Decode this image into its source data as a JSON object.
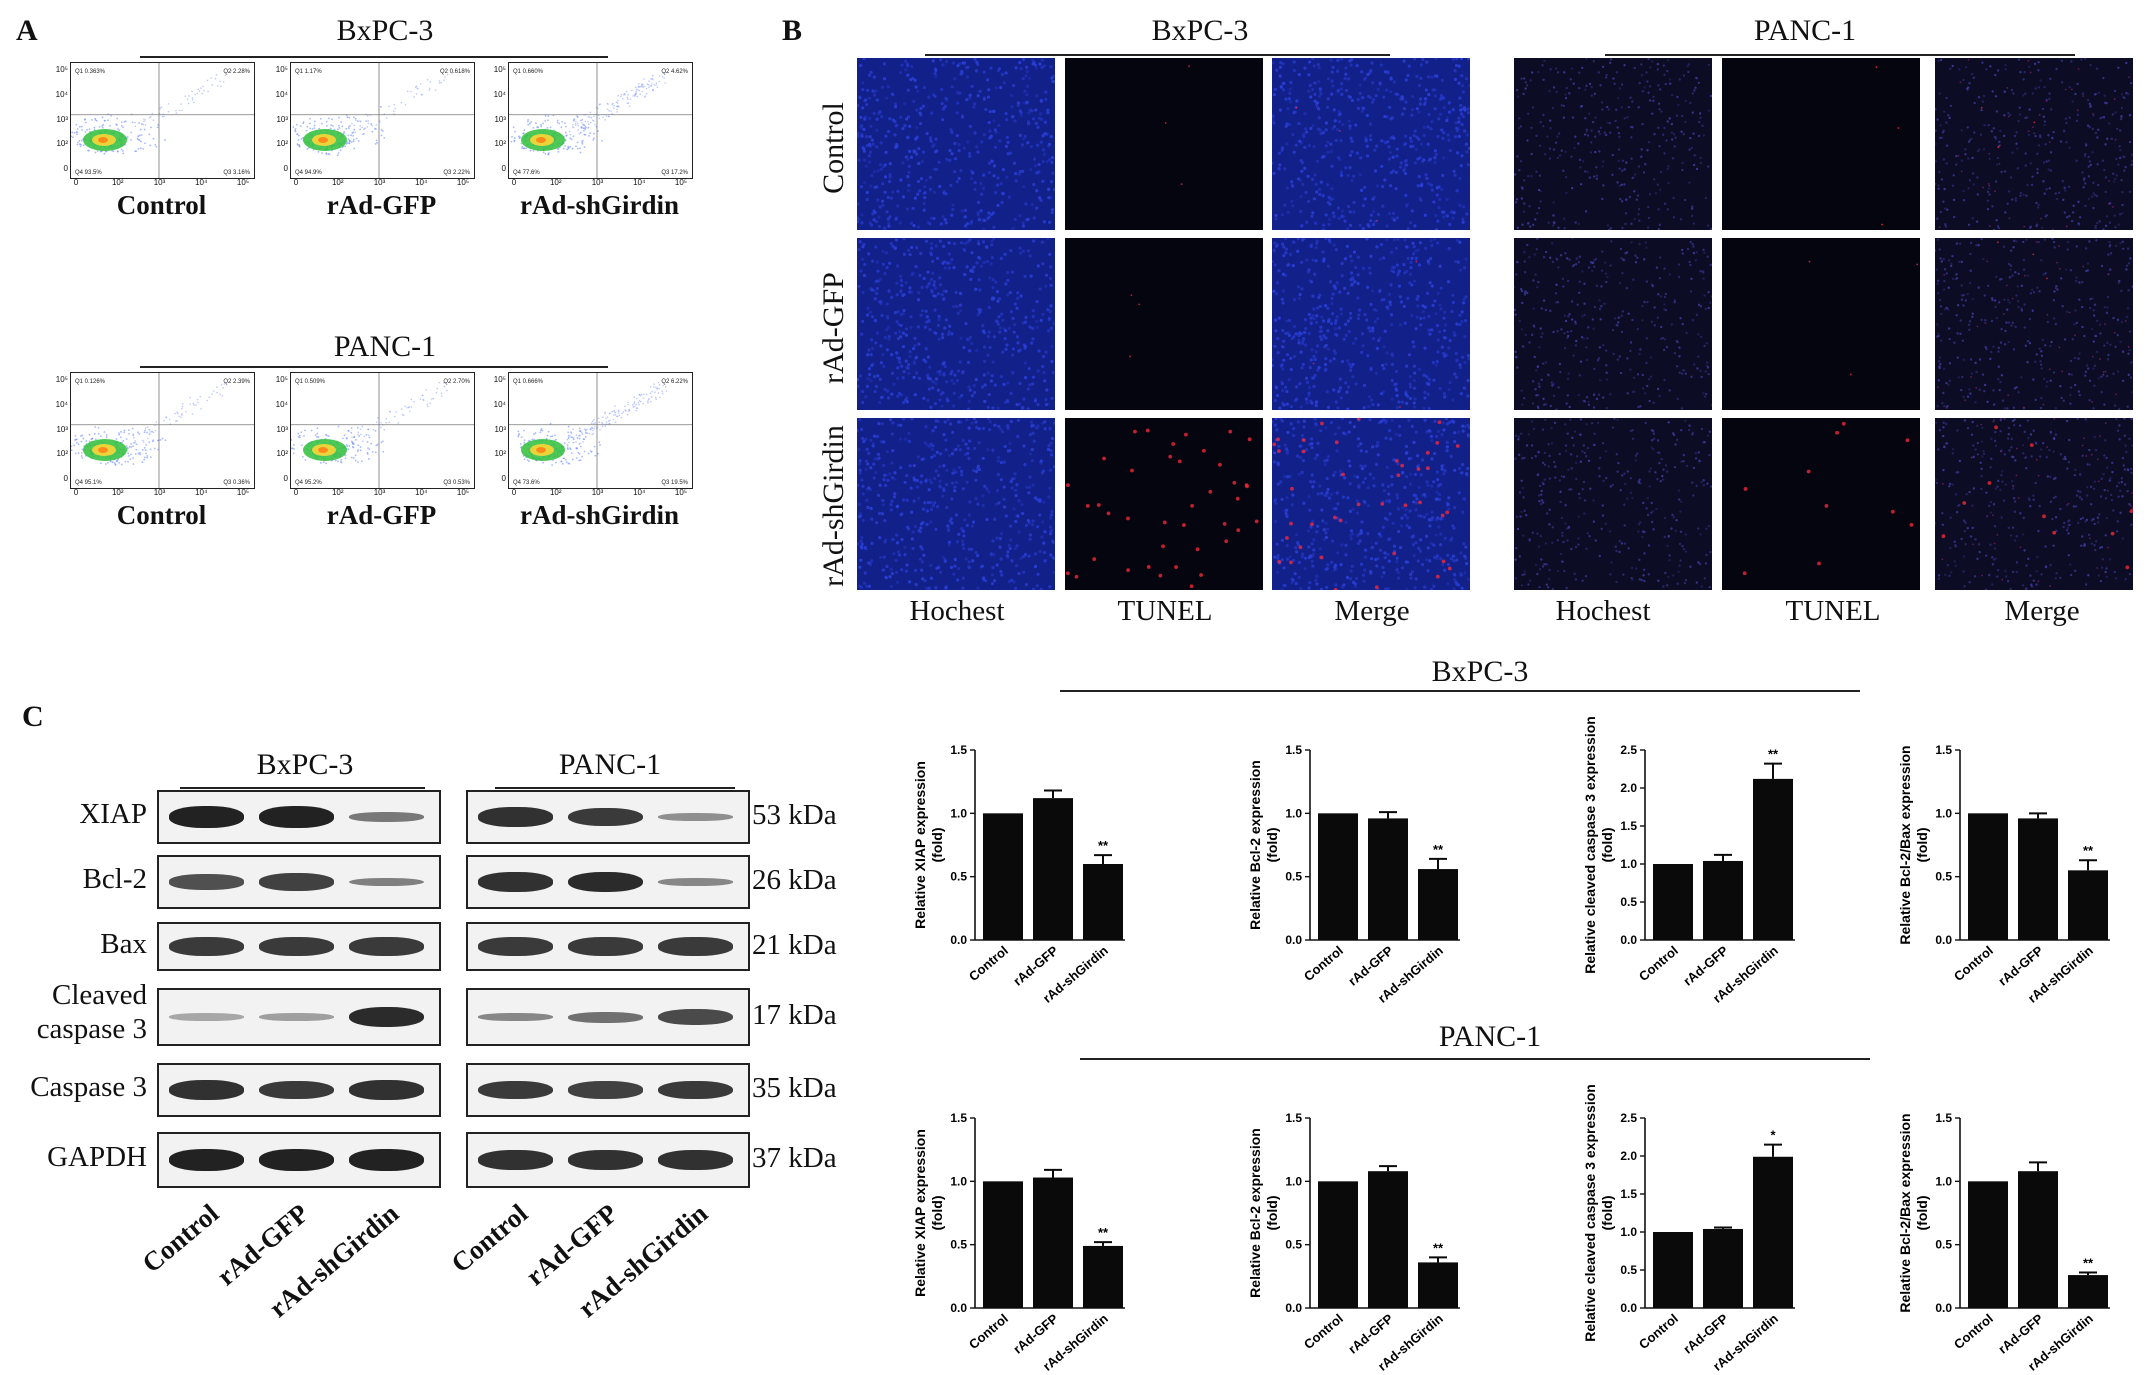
{
  "panel_a": {
    "letter": "A",
    "groups": [
      {
        "cell_line": "BxPC-3",
        "plots": [
          {
            "label": "Control",
            "q1": "0.363%",
            "q2": "2.28%",
            "q3": "3.16%",
            "q4": "93.5%"
          },
          {
            "label": "rAd-GFP",
            "q1": "1.17%",
            "q2": "0.618%",
            "q3": "2.22%",
            "q4": "94.9%"
          },
          {
            "label": "rAd-shGirdin",
            "q1": "0.660%",
            "q2": "4.62%",
            "q3": "17.2%",
            "q4": "77.6%"
          }
        ]
      },
      {
        "cell_line": "PANC-1",
        "plots": [
          {
            "label": "Control",
            "q1": "0.126%",
            "q2": "2.39%",
            "q3": "0.36%",
            "q4": "95.1%"
          },
          {
            "label": "rAd-GFP",
            "q1": "0.509%",
            "q2": "2.70%",
            "q3": "0.53%",
            "q4": "95.2%"
          },
          {
            "label": "rAd-shGirdin",
            "q1": "0.666%",
            "q2": "6.22%",
            "q3": "19.5%",
            "q4": "73.6%"
          }
        ]
      }
    ],
    "quadrant_names": [
      "Q1",
      "Q2",
      "Q3",
      "Q4"
    ],
    "ticks": [
      "0",
      "10²",
      "10³",
      "10⁴",
      "10⁵"
    ]
  },
  "panel_b": {
    "letter": "B",
    "cell_lines": [
      "BxPC-3",
      "PANC-1"
    ],
    "rows": [
      "Control",
      "rAd-GFP",
      "rAd-shGirdin"
    ],
    "columns": [
      "Hochest",
      "TUNEL",
      "Merge"
    ],
    "colors": {
      "hoechst_bright": "#2a3fd6",
      "hoechst_dim": "#14143a",
      "tunel": "#ff2a3a",
      "background": "#050510"
    }
  },
  "panel_c": {
    "letter": "C",
    "blot": {
      "cell_lines": [
        "BxPC-3",
        "PANC-1"
      ],
      "proteins": [
        {
          "name": "XIAP",
          "kda": "53 kDa"
        },
        {
          "name": "Bcl-2",
          "kda": "26 kDa"
        },
        {
          "name": "Bax",
          "kda": "21 kDa"
        },
        {
          "name": "Cleaved caspase 3",
          "kda": "17 kDa"
        },
        {
          "name": "Caspase 3",
          "kda": "35 kDa"
        },
        {
          "name": "GAPDH",
          "kda": "37 kDa"
        }
      ],
      "lanes": [
        "Control",
        "rAd-GFP",
        "rAd-shGirdin"
      ]
    },
    "chart_group_titles": [
      "BxPC-3",
      "PANC-1"
    ]
  },
  "chart_data": [
    {
      "type": "bar",
      "group": "BxPC-3",
      "categories": [
        "Control",
        "rAd-GFP",
        "rAd-shGirdin"
      ],
      "values": [
        1.0,
        1.12,
        0.6
      ],
      "errors": [
        0,
        0.06,
        0.07
      ],
      "sig": [
        "",
        "",
        "**"
      ],
      "ylabel": "Relative XIAP expression (fold)",
      "ylim": [
        0,
        1.5
      ],
      "yticks": [
        "0.0",
        "0.5",
        "1.0",
        "1.5"
      ]
    },
    {
      "type": "bar",
      "group": "BxPC-3",
      "categories": [
        "Control",
        "rAd-GFP",
        "rAd-shGirdin"
      ],
      "values": [
        1.0,
        0.96,
        0.56
      ],
      "errors": [
        0,
        0.05,
        0.08
      ],
      "sig": [
        "",
        "",
        "**"
      ],
      "ylabel": "Relative Bcl-2 expression (fold)",
      "ylim": [
        0,
        1.5
      ],
      "yticks": [
        "0.0",
        "0.5",
        "1.0",
        "1.5"
      ]
    },
    {
      "type": "bar",
      "group": "BxPC-3",
      "categories": [
        "Control",
        "rAd-GFP",
        "rAd-shGirdin"
      ],
      "values": [
        1.0,
        1.04,
        2.12
      ],
      "errors": [
        0,
        0.08,
        0.2
      ],
      "sig": [
        "",
        "",
        "**"
      ],
      "ylabel": "Relative cleaved caspase 3 expression (fold)",
      "ylim": [
        0,
        2.5
      ],
      "yticks": [
        "0.0",
        "0.5",
        "1.0",
        "1.5",
        "2.0",
        "2.5"
      ]
    },
    {
      "type": "bar",
      "group": "BxPC-3",
      "categories": [
        "Control",
        "rAd-GFP",
        "rAd-shGirdin"
      ],
      "values": [
        1.0,
        0.96,
        0.55
      ],
      "errors": [
        0,
        0.04,
        0.08
      ],
      "sig": [
        "",
        "",
        "**"
      ],
      "ylabel": "Relative Bcl-2/Bax expression (fold)",
      "ylim": [
        0,
        1.5
      ],
      "yticks": [
        "0.0",
        "0.5",
        "1.0",
        "1.5"
      ]
    },
    {
      "type": "bar",
      "group": "PANC-1",
      "categories": [
        "Control",
        "rAd-GFP",
        "rAd-shGirdin"
      ],
      "values": [
        1.0,
        1.03,
        0.49
      ],
      "errors": [
        0,
        0.06,
        0.03
      ],
      "sig": [
        "",
        "",
        "**"
      ],
      "ylabel": "Relative XIAP expression (fold)",
      "ylim": [
        0,
        1.5
      ],
      "yticks": [
        "0.0",
        "0.5",
        "1.0",
        "1.5"
      ]
    },
    {
      "type": "bar",
      "group": "PANC-1",
      "categories": [
        "Control",
        "rAd-GFP",
        "rAd-shGirdin"
      ],
      "values": [
        1.0,
        1.08,
        0.36
      ],
      "errors": [
        0,
        0.04,
        0.04
      ],
      "sig": [
        "",
        "",
        "**"
      ],
      "ylabel": "Relative Bcl-2 expression (fold)",
      "ylim": [
        0,
        1.5
      ],
      "yticks": [
        "0.0",
        "0.5",
        "1.0",
        "1.5"
      ]
    },
    {
      "type": "bar",
      "group": "PANC-1",
      "categories": [
        "Control",
        "rAd-GFP",
        "rAd-shGirdin"
      ],
      "values": [
        1.0,
        1.04,
        1.99
      ],
      "errors": [
        0,
        0.02,
        0.16
      ],
      "sig": [
        "",
        "",
        "*"
      ],
      "ylabel": "Relative cleaved caspase 3 expression (fold)",
      "ylim": [
        0,
        2.5
      ],
      "yticks": [
        "0.0",
        "0.5",
        "1.0",
        "1.5",
        "2.0",
        "2.5"
      ]
    },
    {
      "type": "bar",
      "group": "PANC-1",
      "categories": [
        "Control",
        "rAd-GFP",
        "rAd-shGirdin"
      ],
      "values": [
        1.0,
        1.08,
        0.26
      ],
      "errors": [
        0,
        0.07,
        0.02
      ],
      "sig": [
        "",
        "",
        "**"
      ],
      "ylabel": "Relative Bcl-2/Bax expression (fold)",
      "ylim": [
        0,
        1.5
      ],
      "yticks": [
        "0.0",
        "0.5",
        "1.0",
        "1.5"
      ]
    }
  ]
}
